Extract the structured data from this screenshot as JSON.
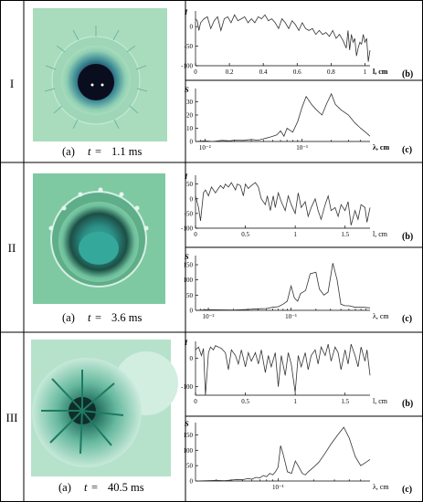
{
  "rows": [
    {
      "label": "I",
      "caption": {
        "panel": "(a)",
        "t": "t",
        "eq": "=",
        "value": "1.1 ms"
      },
      "photo": {
        "description": "drop impact crown at 1.1 ms",
        "colors": {
          "bg": "#a9dcbc",
          "center": "#152a3c",
          "ring": "#2f7e8c"
        }
      }
    },
    {
      "label": "II",
      "caption": {
        "panel": "(a)",
        "t": "t",
        "eq": "=",
        "value": "3.6 ms"
      },
      "photo": {
        "description": "drop impact crown at 3.6 ms",
        "colors": {
          "bg": "#7ec9a2",
          "center": "#2b9c93",
          "ring": "#1f6e5f"
        }
      }
    },
    {
      "label": "III",
      "caption": {
        "panel": "(a)",
        "t": "t",
        "eq": "=",
        "value": "40.5 ms"
      },
      "photo": {
        "description": "drop impact pattern at 40.5 ms",
        "colors": {
          "bg": "#b6e2cc",
          "center": "#123a32",
          "ring": "#2f9c80"
        }
      }
    }
  ],
  "chart_data": [
    {
      "id": "I-b",
      "type": "line",
      "panel": "(b)",
      "ylabel": "I",
      "xlabel": "l, cm",
      "xlim": [
        0,
        1.03
      ],
      "ylim": [
        -100,
        40
      ],
      "xticks": [
        0,
        0.2,
        0.4,
        0.6,
        0.8,
        1
      ],
      "xtick_labels": [
        "0",
        "0.2",
        "0.4",
        "0.6",
        "0.8",
        "1"
      ],
      "yticks": [
        -100,
        -50,
        0
      ],
      "ytick_labels": [
        "-100",
        "-50",
        "0"
      ],
      "x": [
        0,
        0.01,
        0.02,
        0.03,
        0.05,
        0.07,
        0.09,
        0.11,
        0.13,
        0.15,
        0.17,
        0.19,
        0.21,
        0.23,
        0.25,
        0.27,
        0.29,
        0.31,
        0.33,
        0.35,
        0.37,
        0.39,
        0.41,
        0.43,
        0.45,
        0.47,
        0.49,
        0.51,
        0.53,
        0.55,
        0.57,
        0.59,
        0.61,
        0.63,
        0.65,
        0.67,
        0.69,
        0.71,
        0.73,
        0.75,
        0.77,
        0.79,
        0.81,
        0.83,
        0.85,
        0.87,
        0.89,
        0.9,
        0.91,
        0.92,
        0.93,
        0.94,
        0.95,
        0.96,
        0.97,
        0.98,
        0.99,
        1.0,
        1.01,
        1.02,
        1.03
      ],
      "y": [
        20,
        15,
        -10,
        10,
        20,
        25,
        -5,
        15,
        25,
        -10,
        20,
        25,
        10,
        30,
        15,
        20,
        25,
        10,
        20,
        10,
        25,
        20,
        30,
        15,
        20,
        10,
        -5,
        20,
        10,
        -5,
        15,
        5,
        -10,
        10,
        -5,
        -10,
        -5,
        -20,
        -10,
        -20,
        -15,
        -25,
        -10,
        -30,
        -20,
        -35,
        -55,
        -10,
        -60,
        -20,
        -40,
        -30,
        -75,
        -55,
        -40,
        -45,
        -20,
        -40,
        -30,
        -90,
        -60
      ]
    },
    {
      "id": "I-c",
      "type": "line",
      "panel": "(c)",
      "ylabel": "S",
      "xlabel": "λ, cm",
      "xscale": "log",
      "xlim": [
        0.008,
        0.5
      ],
      "ylim": [
        0,
        40
      ],
      "xticks": [
        0.01,
        0.1
      ],
      "xtick_labels": [
        "10⁻²",
        "10⁻¹"
      ],
      "yticks": [
        0,
        10,
        20,
        30
      ],
      "ytick_labels": [
        "0",
        "10",
        "20",
        "30"
      ],
      "x": [
        0.008,
        0.01,
        0.012,
        0.015,
        0.018,
        0.02,
        0.025,
        0.03,
        0.035,
        0.04,
        0.045,
        0.05,
        0.055,
        0.06,
        0.065,
        0.07,
        0.08,
        0.09,
        0.1,
        0.11,
        0.125,
        0.14,
        0.16,
        0.18,
        0.2,
        0.22,
        0.25,
        0.3,
        0.35,
        0.4,
        0.45,
        0.5
      ],
      "y": [
        0,
        0.5,
        0,
        0.8,
        0.5,
        1,
        0.8,
        1.5,
        1,
        2,
        3,
        4,
        5,
        8,
        4,
        10,
        7,
        15,
        26,
        34,
        28,
        24,
        20,
        29,
        36,
        28,
        24,
        20,
        14,
        10,
        7,
        4
      ]
    },
    {
      "id": "II-b",
      "type": "line",
      "panel": "(b)",
      "ylabel": "I",
      "xlabel": "l, cm",
      "xlim": [
        0,
        1.75
      ],
      "ylim": [
        -100,
        80
      ],
      "xticks": [
        0,
        0.5,
        1,
        1.5
      ],
      "xtick_labels": [
        "0",
        "0.5",
        "1",
        "1.5"
      ],
      "yticks": [
        -100,
        -50,
        0,
        50
      ],
      "ytick_labels": [
        "-100",
        "-50",
        "0",
        "50"
      ],
      "x": [
        0,
        0.03,
        0.05,
        0.08,
        0.1,
        0.13,
        0.16,
        0.2,
        0.25,
        0.28,
        0.3,
        0.33,
        0.36,
        0.4,
        0.42,
        0.45,
        0.48,
        0.5,
        0.53,
        0.56,
        0.6,
        0.63,
        0.66,
        0.7,
        0.72,
        0.75,
        0.78,
        0.8,
        0.83,
        0.86,
        0.9,
        0.93,
        0.96,
        1,
        1.03,
        1.06,
        1.1,
        1.13,
        1.16,
        1.2,
        1.23,
        1.26,
        1.3,
        1.33,
        1.36,
        1.4,
        1.43,
        1.46,
        1.5,
        1.53,
        1.56,
        1.6,
        1.63,
        1.66,
        1.7,
        1.72,
        1.75
      ],
      "y": [
        10,
        -30,
        -75,
        20,
        30,
        10,
        40,
        20,
        45,
        35,
        50,
        40,
        55,
        30,
        50,
        45,
        10,
        50,
        35,
        45,
        55,
        40,
        0,
        -20,
        10,
        -40,
        10,
        -30,
        20,
        -10,
        -40,
        10,
        -20,
        -50,
        20,
        -30,
        -10,
        -60,
        -30,
        0,
        -40,
        -70,
        -20,
        10,
        -40,
        -30,
        -60,
        -20,
        -40,
        -10,
        -90,
        -40,
        -70,
        -20,
        -30,
        -80,
        -30
      ]
    },
    {
      "id": "II-c",
      "type": "line",
      "panel": "(c)",
      "ylabel": "S",
      "xlabel": "λ, cm",
      "xscale": "log",
      "xlim": [
        0.007,
        0.9
      ],
      "ylim": [
        0,
        180
      ],
      "xticks": [
        0.01,
        0.1
      ],
      "xtick_labels": [
        "10⁻²",
        "10⁻¹"
      ],
      "yticks": [
        0,
        50,
        100,
        150
      ],
      "ytick_labels": [
        "0",
        "50",
        "100",
        "150"
      ],
      "x": [
        0.007,
        0.01,
        0.02,
        0.03,
        0.04,
        0.05,
        0.06,
        0.07,
        0.08,
        0.09,
        0.1,
        0.11,
        0.12,
        0.13,
        0.15,
        0.17,
        0.2,
        0.22,
        0.25,
        0.28,
        0.32,
        0.36,
        0.4,
        0.45,
        0.5,
        0.6,
        0.75,
        0.9
      ],
      "y": [
        0,
        2,
        1,
        3,
        5,
        6,
        10,
        12,
        20,
        30,
        80,
        40,
        30,
        55,
        65,
        120,
        125,
        70,
        50,
        60,
        155,
        100,
        20,
        15,
        15,
        10,
        10,
        8
      ]
    },
    {
      "id": "III-b",
      "type": "line",
      "panel": "(b)",
      "ylabel": "I",
      "xlabel": "l, cm",
      "xlim": [
        0,
        1.75
      ],
      "ylim": [
        -130,
        60
      ],
      "xticks": [
        0,
        0.5,
        1,
        1.5
      ],
      "xtick_labels": [
        "0",
        "0.5",
        "1",
        "1.5"
      ],
      "yticks": [
        -100,
        0
      ],
      "ytick_labels": [
        "-100",
        "0"
      ],
      "x": [
        0,
        0.03,
        0.06,
        0.08,
        0.1,
        0.13,
        0.15,
        0.18,
        0.2,
        0.23,
        0.26,
        0.3,
        0.33,
        0.36,
        0.4,
        0.43,
        0.46,
        0.5,
        0.53,
        0.56,
        0.6,
        0.63,
        0.66,
        0.7,
        0.73,
        0.76,
        0.8,
        0.83,
        0.86,
        0.9,
        0.93,
        0.96,
        1,
        1.03,
        1.06,
        1.1,
        1.13,
        1.16,
        1.2,
        1.23,
        1.26,
        1.3,
        1.33,
        1.36,
        1.4,
        1.43,
        1.46,
        1.5,
        1.53,
        1.56,
        1.6,
        1.63,
        1.66,
        1.7,
        1.72,
        1.75
      ],
      "y": [
        30,
        40,
        10,
        35,
        -130,
        20,
        40,
        30,
        45,
        40,
        35,
        20,
        -40,
        30,
        10,
        -20,
        30,
        -30,
        20,
        -10,
        20,
        -20,
        30,
        -50,
        10,
        -30,
        20,
        -100,
        10,
        -60,
        20,
        -20,
        -120,
        10,
        -30,
        20,
        -40,
        10,
        30,
        -20,
        40,
        10,
        50,
        -10,
        40,
        20,
        -40,
        30,
        -20,
        50,
        10,
        -30,
        40,
        -10,
        30,
        -60
      ]
    },
    {
      "id": "III-c",
      "type": "line",
      "panel": "(c)",
      "ylabel": "S",
      "xlabel": "λ, cm",
      "xscale": "log",
      "xlim": [
        0.02,
        0.6
      ],
      "ylim": [
        0,
        190
      ],
      "xticks": [
        0.1
      ],
      "xtick_labels": [
        "10⁻¹"
      ],
      "yticks": [
        0,
        50,
        100,
        150
      ],
      "ytick_labels": [
        "0",
        "50",
        "100",
        "150"
      ],
      "x": [
        0.02,
        0.025,
        0.03,
        0.035,
        0.04,
        0.045,
        0.05,
        0.055,
        0.06,
        0.065,
        0.07,
        0.075,
        0.08,
        0.085,
        0.09,
        0.095,
        0.1,
        0.105,
        0.11,
        0.115,
        0.12,
        0.13,
        0.14,
        0.15,
        0.16,
        0.17,
        0.18,
        0.2,
        0.22,
        0.25,
        0.28,
        0.32,
        0.36,
        0.4,
        0.45,
        0.5,
        0.55,
        0.6
      ],
      "y": [
        0,
        1,
        2,
        1,
        3,
        5,
        4,
        8,
        6,
        12,
        10,
        18,
        14,
        25,
        20,
        30,
        45,
        115,
        90,
        60,
        30,
        25,
        65,
        45,
        25,
        20,
        30,
        45,
        60,
        90,
        120,
        150,
        175,
        140,
        80,
        50,
        60,
        70
      ]
    }
  ]
}
